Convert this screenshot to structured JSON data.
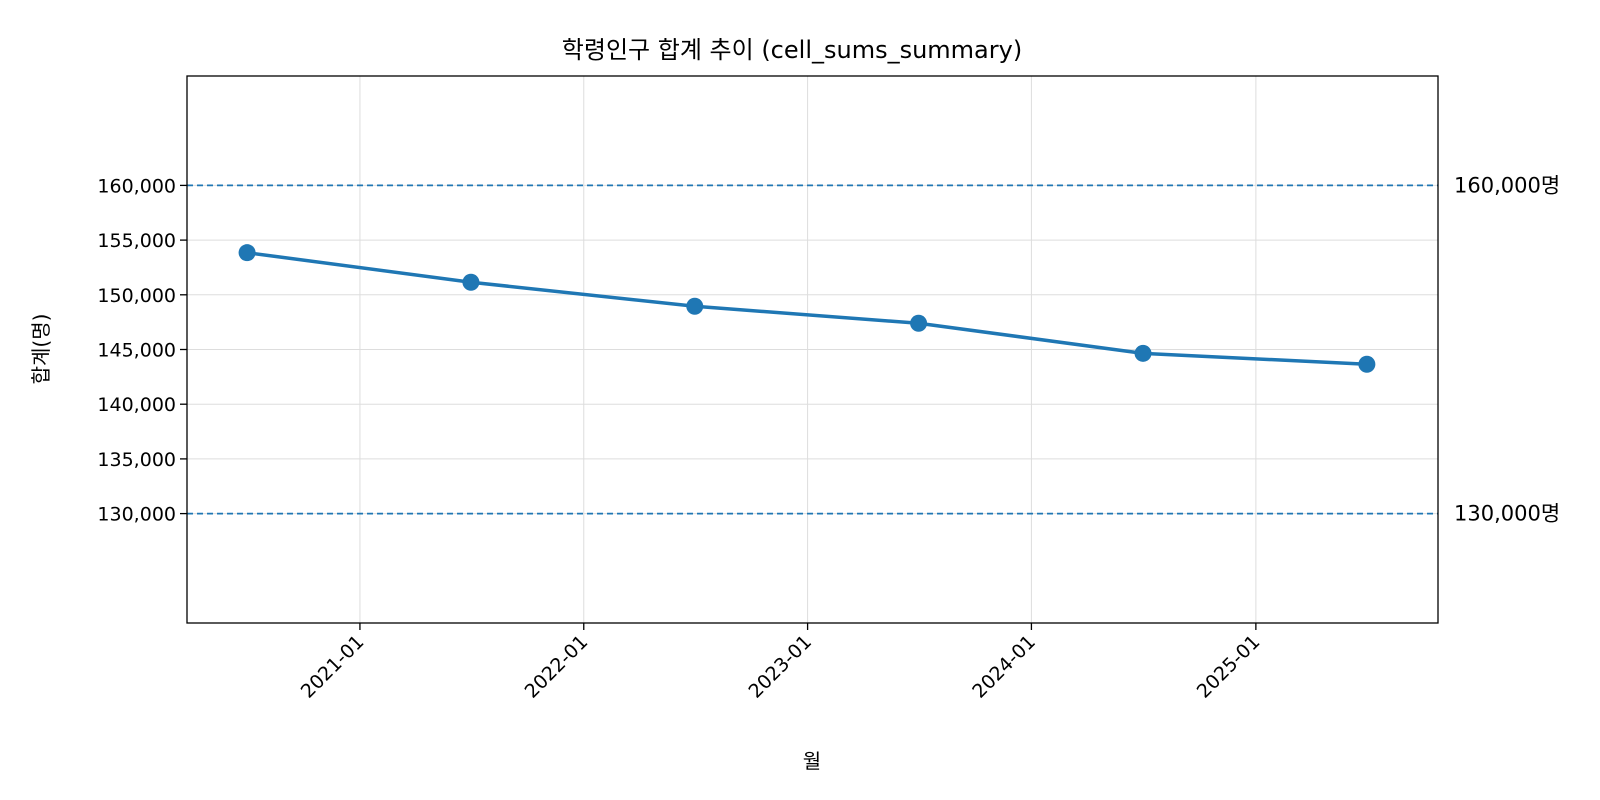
{
  "chart_data": {
    "type": "line",
    "title": "학령인구 합계 추이 (cell_sums_summary)",
    "xlabel": "월",
    "ylabel": "합계(명)",
    "x": [
      "2020-07",
      "2021-07",
      "2022-07",
      "2023-07",
      "2024-07",
      "2025-07"
    ],
    "series": [
      {
        "values": [
          153850,
          151150,
          148950,
          147400,
          144650,
          143650
        ]
      }
    ],
    "xlim": [
      "2020-03-25",
      "2025-10-25"
    ],
    "ylim": [
      120000,
      170000
    ],
    "x_ticks": [
      {
        "date": "2021-01-01",
        "label": "2021-01"
      },
      {
        "date": "2022-01-01",
        "label": "2022-01"
      },
      {
        "date": "2023-01-01",
        "label": "2023-01"
      },
      {
        "date": "2024-01-01",
        "label": "2024-01"
      },
      {
        "date": "2025-01-01",
        "label": "2025-01"
      }
    ],
    "y_ticks": [
      {
        "value": 130000,
        "label": "130,000"
      },
      {
        "value": 135000,
        "label": "135,000"
      },
      {
        "value": 140000,
        "label": "140,000"
      },
      {
        "value": 145000,
        "label": "145,000"
      },
      {
        "value": 150000,
        "label": "150,000"
      },
      {
        "value": 155000,
        "label": "155,000"
      },
      {
        "value": 160000,
        "label": "160,000"
      }
    ],
    "reference_lines": [
      {
        "value": 160000,
        "label": "160,000명",
        "style": "dashed"
      },
      {
        "value": 130000,
        "label": "130,000명",
        "style": "dashed"
      }
    ],
    "grid": true,
    "colors": {
      "line": "#1f77b4",
      "reference": "#1f77b4",
      "grid": "#dddddd"
    }
  }
}
